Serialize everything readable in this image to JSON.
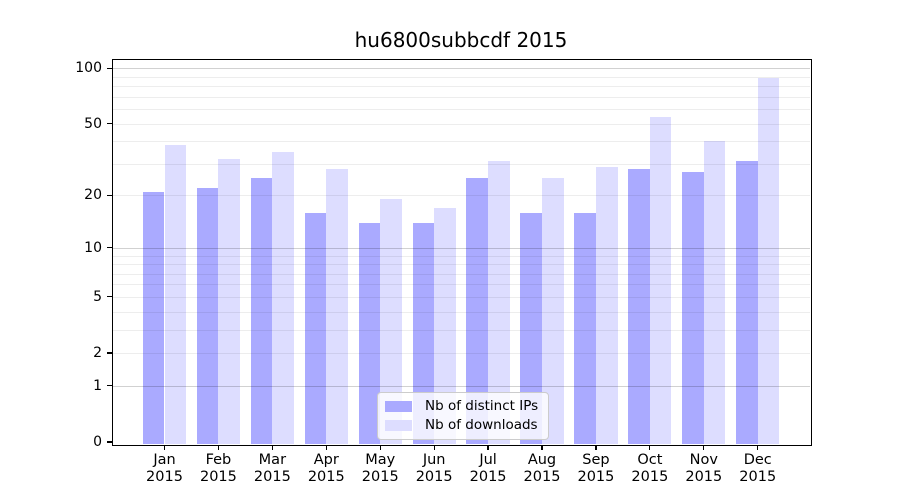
{
  "title": "hu6800subbcdf 2015",
  "chart_data": {
    "type": "bar",
    "title": "hu6800subbcdf 2015",
    "categories": [
      "Jan 2015",
      "Feb 2015",
      "Mar 2015",
      "Apr 2015",
      "May 2015",
      "Jun 2015",
      "Jul 2015",
      "Aug 2015",
      "Sep 2015",
      "Oct 2015",
      "Nov 2015",
      "Dec 2015"
    ],
    "month_labels": [
      "Jan",
      "Feb",
      "Mar",
      "Apr",
      "May",
      "Jun",
      "Jul",
      "Aug",
      "Sep",
      "Oct",
      "Nov",
      "Dec"
    ],
    "year_label": "2015",
    "series": [
      {
        "name": "Nb of distinct IPs",
        "color": "#aaaaff",
        "values": [
          21,
          22,
          25,
          16,
          14,
          14,
          25,
          16,
          16,
          28,
          27,
          31
        ]
      },
      {
        "name": "Nb of downloads",
        "color": "#ddddff",
        "values": [
          38,
          32,
          35,
          28,
          19,
          17,
          31,
          25,
          29,
          54,
          40,
          88
        ]
      }
    ],
    "xlabel": "",
    "ylabel": "",
    "y_scale": "log10(1+v), zero baseline shown",
    "y_tick_values": [
      0,
      1,
      2,
      5,
      10,
      20,
      50,
      100
    ],
    "y_major_gridlines": [
      1,
      10,
      100
    ],
    "y_minor_gridlines": [
      2,
      3,
      4,
      5,
      6,
      7,
      8,
      9,
      20,
      30,
      40,
      50,
      60,
      70,
      80,
      90
    ],
    "ylim": [
      0,
      114
    ],
    "grid": "on",
    "legend_position": "lower center inside plot"
  },
  "legend": {
    "items": [
      {
        "label": "Nb of distinct IPs",
        "color": "#aaaaff"
      },
      {
        "label": "Nb of downloads",
        "color": "#ddddff"
      }
    ]
  }
}
